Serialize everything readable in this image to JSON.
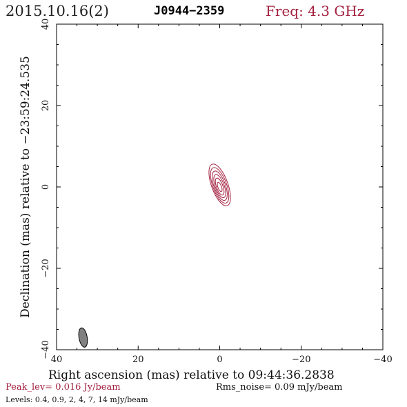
{
  "header": {
    "date": "2015.10.16(2)",
    "source": "J0944−2359",
    "frequency": "Freq: 4.3 GHz"
  },
  "footer": {
    "peak": "Peak_lev=  0.016 Jy/beam",
    "rms": "Rms_noise= 0.09 mJy/beam",
    "levels": "Levels: 0.4,  0.9,    2,    4,    7,   14  mJy/beam"
  },
  "colors": {
    "contour": "#a3203f",
    "beam": "#808080",
    "axis": "#000000"
  },
  "chart_data": {
    "type": "contour",
    "xlabel": "Right ascension (mas) relative to 09:44:36.2838",
    "ylabel": "Declination (mas) relative to −23:59:24.535",
    "xlim": [
      40,
      -40
    ],
    "ylim": [
      -40,
      40
    ],
    "x_ticks": [
      40,
      20,
      0,
      -20,
      -40
    ],
    "y_ticks": [
      -40,
      -20,
      0,
      20,
      40
    ],
    "x_tick_labels": [
      "40",
      "20",
      "0",
      "−20",
      "−40"
    ],
    "y_tick_labels": [
      "−40",
      "−20",
      "0",
      "20",
      "40"
    ],
    "contour_levels_mJy": [
      0.4,
      0.9,
      2,
      4,
      7,
      14
    ],
    "contours": [
      {
        "level": 0.4,
        "cx": 0.0,
        "cy": 0.5,
        "major": 5.4,
        "minor": 2.0,
        "pa": 160
      },
      {
        "level": 0.9,
        "cx": 0.0,
        "cy": 0.4,
        "major": 4.6,
        "minor": 1.7,
        "pa": 160
      },
      {
        "level": 2,
        "cx": 0.0,
        "cy": 0.3,
        "major": 3.8,
        "minor": 1.4,
        "pa": 160
      },
      {
        "level": 4,
        "cx": 0.0,
        "cy": 0.2,
        "major": 3.0,
        "minor": 1.1,
        "pa": 160
      },
      {
        "level": 7,
        "cx": 0.0,
        "cy": 0.1,
        "major": 2.2,
        "minor": 0.8,
        "pa": 160
      },
      {
        "level": 14,
        "cx": 0.0,
        "cy": 0.0,
        "major": 1.2,
        "minor": 0.45,
        "pa": 160
      }
    ],
    "beam": {
      "cx": 33.5,
      "cy": -37.0,
      "major": 2.4,
      "minor": 1.0,
      "pa": 170
    }
  }
}
